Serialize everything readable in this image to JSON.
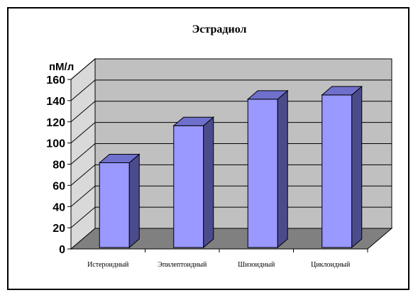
{
  "chart_data": {
    "type": "bar",
    "title": "Эстрадиол",
    "ylabel": "пМ/л",
    "xlabel": "",
    "categories": [
      "Истероидный",
      "Эпилептоидный",
      "Шизоидный",
      "Циклоидный"
    ],
    "values": [
      80,
      115,
      140,
      144
    ],
    "ylim": [
      0,
      160
    ],
    "yticks": [
      0,
      20,
      40,
      60,
      80,
      100,
      120,
      140,
      160
    ],
    "grid": true,
    "legend": "none",
    "style": "3d-column",
    "colors": {
      "bar_front": "#9999ff",
      "bar_side": "#4b4b8c",
      "bar_top": "#6f6fcc",
      "wall": "#c0c0c0",
      "floor": "#808080",
      "side_wall": "#d9d9d9"
    }
  }
}
